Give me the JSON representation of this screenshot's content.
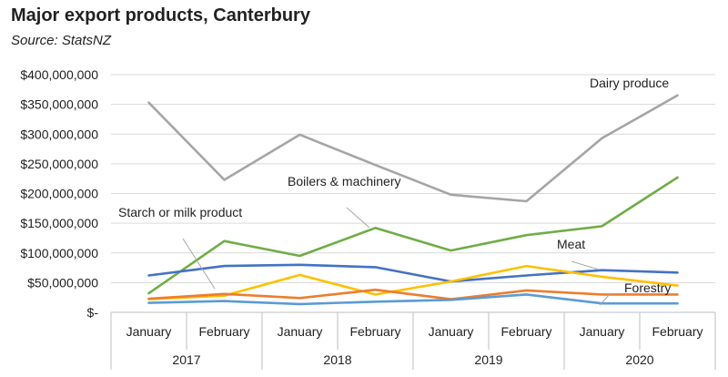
{
  "title": "Major export products, Canterbury",
  "subtitle": "Source: StatsNZ",
  "chart_data": {
    "type": "line",
    "categories": [
      "January",
      "February",
      "January",
      "February",
      "January",
      "February",
      "January",
      "February"
    ],
    "groups": [
      {
        "label": "2017",
        "span": 2
      },
      {
        "label": "2018",
        "span": 2
      },
      {
        "label": "2019",
        "span": 2
      },
      {
        "label": "2020",
        "span": 2
      }
    ],
    "ylim": [
      0,
      400000000
    ],
    "yticks": [
      {
        "value": 0,
        "label": "$-"
      },
      {
        "value": 50000000,
        "label": "$50,000,000"
      },
      {
        "value": 100000000,
        "label": "$100,000,000"
      },
      {
        "value": 150000000,
        "label": "$150,000,000"
      },
      {
        "value": 200000000,
        "label": "$200,000,000"
      },
      {
        "value": 250000000,
        "label": "$250,000,000"
      },
      {
        "value": 300000000,
        "label": "$300,000,000"
      },
      {
        "value": 350000000,
        "label": "$350,000,000"
      },
      {
        "value": 400000000,
        "label": "$400,000,000"
      }
    ],
    "grid": true,
    "series": [
      {
        "name": "Dairy produce",
        "color": "#a5a5a5",
        "values": [
          353000000,
          223000000,
          299000000,
          248000000,
          198000000,
          187000000,
          293000000,
          365000000
        ]
      },
      {
        "name": "Boilers & machinery",
        "color": "#70ad47",
        "values": [
          32000000,
          120000000,
          95000000,
          142000000,
          104000000,
          130000000,
          145000000,
          227000000
        ]
      },
      {
        "name": "Meat",
        "color": "#4472c4",
        "values": [
          62000000,
          78000000,
          80000000,
          76000000,
          52000000,
          62000000,
          71000000,
          67000000
        ]
      },
      {
        "name": "Starch or milk product",
        "color": "#ffc000",
        "values": [
          22000000,
          28000000,
          63000000,
          30000000,
          52000000,
          78000000,
          60000000,
          45000000
        ]
      },
      {
        "name": "",
        "color": "#ed7d31",
        "values": [
          23000000,
          31000000,
          24000000,
          38000000,
          22000000,
          37000000,
          30000000,
          30000000
        ]
      },
      {
        "name": "Forestry",
        "color": "#5b9bd5",
        "values": [
          16000000,
          19000000,
          14000000,
          18000000,
          21000000,
          30000000,
          15000000,
          15000000
        ]
      }
    ]
  }
}
